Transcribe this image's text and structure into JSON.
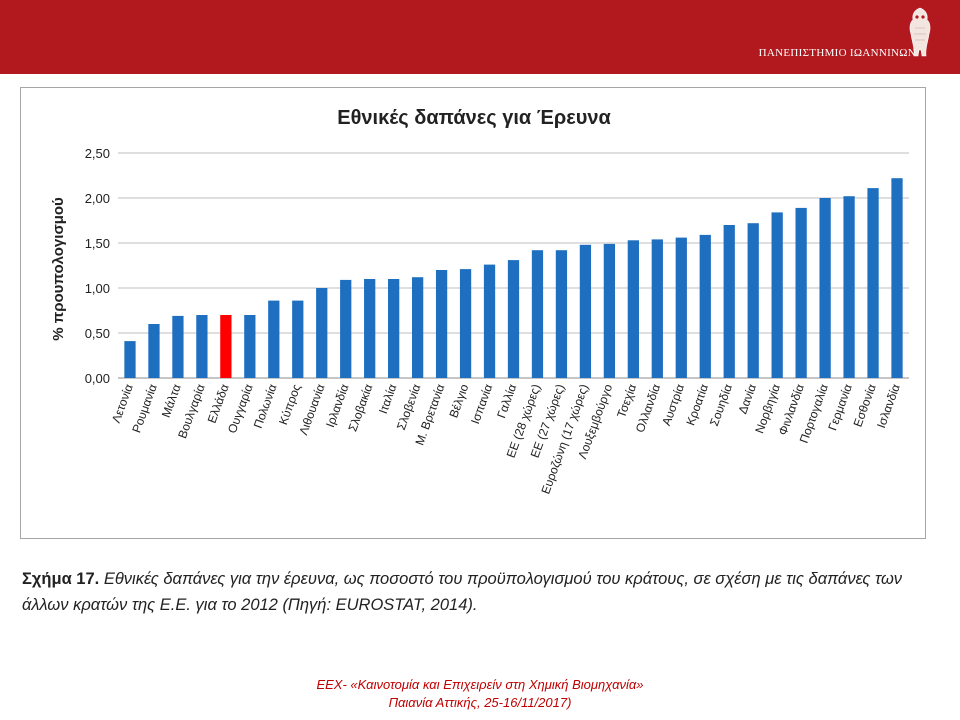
{
  "header": {
    "university": "ΠΑΝΕΠΙΣΤΗΜΙΟ ΙΩΑΝΝΙΝΩΝ",
    "color": "#b1191f"
  },
  "chart_data": {
    "type": "bar",
    "title": "Εθνικές δαπάνες για Έρευνα",
    "ylabel": "% προυπολογισμού",
    "xlabel": "",
    "ylim": [
      0,
      2.5
    ],
    "yticks": [
      "0,00",
      "0,50",
      "1,00",
      "1,50",
      "2,00",
      "2,50"
    ],
    "grid": true,
    "bar_color": "#1f6fc1",
    "highlight_color": "#ff0000",
    "highlight_category": "Ελλάδα",
    "categories": [
      "Λετονία",
      "Ρουμανία",
      "Μάλτα",
      "Βουλγαρία",
      "Ελλάδα",
      "Ουγγαρία",
      "Πολωνία",
      "Κύπρος",
      "Λιθουανία",
      "Ιρλανδία",
      "Σλοβακία",
      "Ιταλία",
      "Σλοβενία",
      "Μ. Βρετανία",
      "Βέλγιο",
      "Ισπανία",
      "Γαλλία",
      "ΕΕ (28 χώρες)",
      "ΕΕ (27 χώρες)",
      "Ευροζώνη (17 χώρες)",
      "Λουξεμβούργο",
      "Τσεχία",
      "Ολλανδία",
      "Αυστρία",
      "Κροατία",
      "Σουηδία",
      "Δανία",
      "Νορβηγία",
      "Φινλανδία",
      "Πορτογαλία",
      "Γερμανία",
      "Εσθονία",
      "Ισλανδία"
    ],
    "values": [
      0.41,
      0.6,
      0.69,
      0.7,
      0.7,
      0.7,
      0.86,
      0.86,
      1.0,
      1.09,
      1.1,
      1.1,
      1.12,
      1.2,
      1.21,
      1.26,
      1.31,
      1.42,
      1.42,
      1.48,
      1.49,
      1.53,
      1.54,
      1.56,
      1.59,
      1.7,
      1.72,
      1.84,
      1.89,
      2.0,
      2.02,
      2.11,
      2.22
    ]
  },
  "caption": {
    "label": "Σχήμα 17.",
    "text": " Εθνικές δαπάνες για την έρευνα, ως ποσοστό του προϋπολογισμού του κράτους, σε σχέση με τις δαπάνες των άλλων κρατών της Ε.Ε. για το 2012 (Πηγή: EUROSTAT, 2014)."
  },
  "footer": {
    "line1": "ΕΕΧ- «Καινοτομία και Επιχειρείν στη Χημική Βιομηχανία»",
    "line2": "Παιανία Αττικής, 25-16/11/2017)"
  }
}
